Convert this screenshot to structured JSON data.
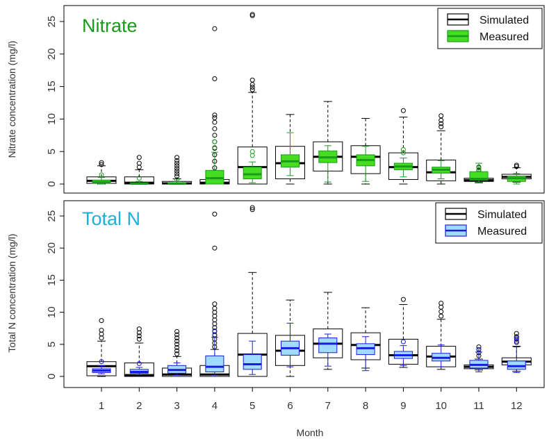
{
  "xlabel": "Month",
  "chart_data": [
    {
      "type": "box",
      "title": "Nitrate",
      "title_color": "#1a9a1a",
      "ylabel": "Nitrate concentration (mg/l)",
      "xlabel": "Month",
      "ylim": [
        0,
        27
      ],
      "yticks": [
        0,
        5,
        10,
        15,
        20,
        25
      ],
      "categories": [
        "1",
        "2",
        "3",
        "4",
        "5",
        "6",
        "7",
        "8",
        "9",
        "10",
        "11",
        "12"
      ],
      "legend": {
        "position": "top-right",
        "entries": [
          {
            "label": "Simulated",
            "fill": "#ffffff",
            "stroke": "#000000"
          },
          {
            "label": "Measured",
            "fill": "#44dd22",
            "stroke": "#1a9a1a"
          }
        ]
      },
      "series": [
        {
          "name": "Simulated",
          "fill": "#ffffff",
          "stroke": "#000000",
          "boxes": [
            {
              "min": 0,
              "q1": 0.1,
              "median": 0.5,
              "q3": 1.1,
              "max": 2.8,
              "outliers": [
                3.0,
                3.3
              ]
            },
            {
              "min": 0,
              "q1": 0,
              "median": 0.2,
              "q3": 1.1,
              "max": 2.2,
              "outliers": [
                2.6,
                3.2,
                4.1
              ]
            },
            {
              "min": 0,
              "q1": 0,
              "median": 0.1,
              "q3": 0.4,
              "max": 0.8,
              "outliers": [
                1.2,
                1.6,
                2.0,
                2.4,
                2.8,
                3.2,
                3.6,
                4.1
              ]
            },
            {
              "min": 0,
              "q1": 0,
              "median": 0.2,
              "q3": 0.7,
              "max": 1.7,
              "outliers": [
                2.5,
                3.5,
                4.5,
                5.5,
                6.5,
                7.5,
                8.5,
                9.5,
                10.2,
                10.6,
                16.2,
                23.9
              ]
            },
            {
              "min": 0,
              "q1": 0,
              "median": 2.6,
              "q3": 5.7,
              "max": 14.1,
              "outliers": [
                14.5,
                14.9,
                15.3,
                16.0,
                25.9,
                26.1
              ]
            },
            {
              "min": 0,
              "q1": 0.8,
              "median": 3.2,
              "q3": 5.8,
              "max": 10.7,
              "outliers": []
            },
            {
              "min": 0,
              "q1": 2.0,
              "median": 4.2,
              "q3": 6.5,
              "max": 12.7,
              "outliers": []
            },
            {
              "min": 0,
              "q1": 1.6,
              "median": 4.2,
              "q3": 5.9,
              "max": 10.1,
              "outliers": []
            },
            {
              "min": 0,
              "q1": 0.7,
              "median": 2.6,
              "q3": 4.8,
              "max": 10.3,
              "outliers": [
                11.3
              ]
            },
            {
              "min": 0,
              "q1": 0.5,
              "median": 1.8,
              "q3": 3.7,
              "max": 8.2,
              "outliers": [
                8.8,
                9.3,
                9.8,
                10.5
              ]
            },
            {
              "min": 0.2,
              "q1": 0.4,
              "median": 0.6,
              "q3": 0.9,
              "max": 1.3,
              "outliers": [
                1.6,
                2.1,
                2.6
              ]
            },
            {
              "min": 0.3,
              "q1": 0.8,
              "median": 1.1,
              "q3": 1.5,
              "max": 2.5,
              "outliers": [
                2.7,
                2.9
              ]
            }
          ]
        },
        {
          "name": "Measured",
          "fill": "#44dd22",
          "stroke": "#1a9a1a",
          "boxes": [
            {
              "min": 0,
              "q1": 0.1,
              "median": 0.3,
              "q3": 0.6,
              "max": 1.0,
              "outliers": [
                1.4
              ]
            },
            {
              "min": 0,
              "q1": 0,
              "median": 0.05,
              "q3": 0.2,
              "max": 0.4,
              "outliers": [
                0.9
              ]
            },
            {
              "min": 0,
              "q1": 0,
              "median": 0.05,
              "q3": 0.2,
              "max": 0.4,
              "outliers": [
                0.7
              ]
            },
            {
              "min": 0,
              "q1": 0,
              "median": 0.9,
              "q3": 2.1,
              "max": 4.9,
              "outliers": [
                5.6,
                6.5
              ]
            },
            {
              "min": 0.2,
              "q1": 0.8,
              "median": 1.5,
              "q3": 2.6,
              "max": 3.4,
              "outliers": [
                4.4,
                5.0
              ]
            },
            {
              "min": 1.3,
              "q1": 2.6,
              "median": 3.5,
              "q3": 4.5,
              "max": 7.9,
              "outliers": []
            },
            {
              "min": 0.3,
              "q1": 3.3,
              "median": 4.1,
              "q3": 5.1,
              "max": 5.9,
              "outliers": []
            },
            {
              "min": 0.4,
              "q1": 2.8,
              "median": 3.7,
              "q3": 4.5,
              "max": 5.8,
              "outliers": []
            },
            {
              "min": 1.1,
              "q1": 2.2,
              "median": 2.7,
              "q3": 3.2,
              "max": 4.0,
              "outliers": [
                4.8,
                5.3
              ]
            },
            {
              "min": 0.8,
              "q1": 1.7,
              "median": 2.2,
              "q3": 2.6,
              "max": 3.6,
              "outliers": []
            },
            {
              "min": 0.3,
              "q1": 0.6,
              "median": 0.8,
              "q3": 1.9,
              "max": 3.2,
              "outliers": [
                2.2,
                2.5
              ]
            },
            {
              "min": 0,
              "q1": 0.4,
              "median": 0.9,
              "q3": 1.2,
              "max": 1.6,
              "outliers": []
            }
          ]
        }
      ]
    },
    {
      "type": "box",
      "title": "Total N",
      "title_color": "#1ab0e0",
      "ylabel": "Total N concentration (mg/l)",
      "xlabel": "Month",
      "ylim": [
        0,
        27
      ],
      "yticks": [
        0,
        5,
        10,
        15,
        20,
        25
      ],
      "categories": [
        "1",
        "2",
        "3",
        "4",
        "5",
        "6",
        "7",
        "8",
        "9",
        "10",
        "11",
        "12"
      ],
      "legend": {
        "position": "top-right",
        "entries": [
          {
            "label": "Simulated",
            "fill": "#ffffff",
            "stroke": "#000000"
          },
          {
            "label": "Measured",
            "fill": "#a0dcff",
            "stroke": "#1a1ae0"
          }
        ]
      },
      "series": [
        {
          "name": "Simulated",
          "fill": "#ffffff",
          "stroke": "#000000",
          "boxes": [
            {
              "min": 0,
              "q1": 0.1,
              "median": 1.6,
              "q3": 2.3,
              "max": 5.5,
              "outliers": [
                6.0,
                6.6,
                7.2,
                8.7
              ]
            },
            {
              "min": 0,
              "q1": 0,
              "median": 0.2,
              "q3": 2.1,
              "max": 5.2,
              "outliers": [
                5.8,
                6.3,
                6.8,
                7.4
              ]
            },
            {
              "min": 0,
              "q1": 0,
              "median": 0.3,
              "q3": 1.3,
              "max": 3.1,
              "outliers": [
                3.5,
                4.0,
                4.5,
                5.0,
                5.5,
                6.0,
                6.5,
                7.0
              ]
            },
            {
              "min": 0,
              "q1": 0,
              "median": 0.3,
              "q3": 1.7,
              "max": 4.2,
              "outliers": [
                4.6,
                5.2,
                5.8,
                6.4,
                7.0,
                7.6,
                8.2,
                8.8,
                9.4,
                10.0,
                10.6,
                11.3,
                20.0,
                25.3
              ]
            },
            {
              "min": 0,
              "q1": 0,
              "median": 3.4,
              "q3": 6.7,
              "max": 16.2,
              "outliers": [
                26.0,
                26.3
              ]
            },
            {
              "min": 0,
              "q1": 1.7,
              "median": 4.0,
              "q3": 6.4,
              "max": 11.9,
              "outliers": []
            },
            {
              "min": 1.1,
              "q1": 2.9,
              "median": 5.1,
              "q3": 7.4,
              "max": 13.1,
              "outliers": []
            },
            {
              "min": 1.3,
              "q1": 2.6,
              "median": 4.9,
              "q3": 6.8,
              "max": 10.7,
              "outliers": []
            },
            {
              "min": 1.4,
              "q1": 1.9,
              "median": 3.3,
              "q3": 5.8,
              "max": 11.2,
              "outliers": [
                12.0
              ]
            },
            {
              "min": 1.1,
              "q1": 1.5,
              "median": 3.1,
              "q3": 4.7,
              "max": 8.9,
              "outliers": [
                9.4,
                10.1,
                10.8,
                11.4
              ]
            },
            {
              "min": 1.0,
              "q1": 1.2,
              "median": 1.5,
              "q3": 1.8,
              "max": 2.7,
              "outliers": [
                3.2,
                3.7,
                4.2,
                4.6
              ]
            },
            {
              "min": 0.8,
              "q1": 1.8,
              "median": 2.3,
              "q3": 2.9,
              "max": 4.7,
              "outliers": [
                5.3,
                5.8,
                6.2,
                6.7
              ]
            }
          ]
        },
        {
          "name": "Measured",
          "fill": "#a0dcff",
          "stroke": "#1a1ae0",
          "boxes": [
            {
              "min": 0.4,
              "q1": 0.6,
              "median": 0.9,
              "q3": 1.2,
              "max": 1.7,
              "outliers": [
                2.3
              ]
            },
            {
              "min": 0.3,
              "q1": 0.5,
              "median": 0.7,
              "q3": 1.1,
              "max": 1.4,
              "outliers": [
                2.0
              ]
            },
            {
              "min": 0.2,
              "q1": 0.5,
              "median": 1.0,
              "q3": 1.7,
              "max": 2.1,
              "outliers": []
            },
            {
              "min": 0.2,
              "q1": 0.7,
              "median": 1.5,
              "q3": 3.2,
              "max": 6.1,
              "outliers": [
                6.5,
                7.1
              ]
            },
            {
              "min": 0.3,
              "q1": 1.1,
              "median": 1.9,
              "q3": 3.4,
              "max": 5.5,
              "outliers": []
            },
            {
              "min": 1.5,
              "q1": 3.3,
              "median": 4.4,
              "q3": 5.5,
              "max": 8.3,
              "outliers": []
            },
            {
              "min": 1.6,
              "q1": 3.7,
              "median": 5.1,
              "q3": 6.0,
              "max": 6.6,
              "outliers": []
            },
            {
              "min": 0.9,
              "q1": 3.4,
              "median": 4.4,
              "q3": 5.1,
              "max": 6.2,
              "outliers": []
            },
            {
              "min": 1.7,
              "q1": 2.8,
              "median": 3.3,
              "q3": 3.9,
              "max": 4.8,
              "outliers": [
                5.4
              ]
            },
            {
              "min": 1.5,
              "q1": 2.4,
              "median": 2.9,
              "q3": 3.6,
              "max": 4.9,
              "outliers": []
            },
            {
              "min": 0.7,
              "q1": 1.3,
              "median": 1.8,
              "q3": 2.5,
              "max": 3.8,
              "outliers": [
                4.2
              ]
            },
            {
              "min": 0.6,
              "q1": 1.1,
              "median": 1.6,
              "q3": 2.4,
              "max": 4.6,
              "outliers": [
                5.5,
                6.0
              ]
            }
          ]
        }
      ]
    }
  ]
}
